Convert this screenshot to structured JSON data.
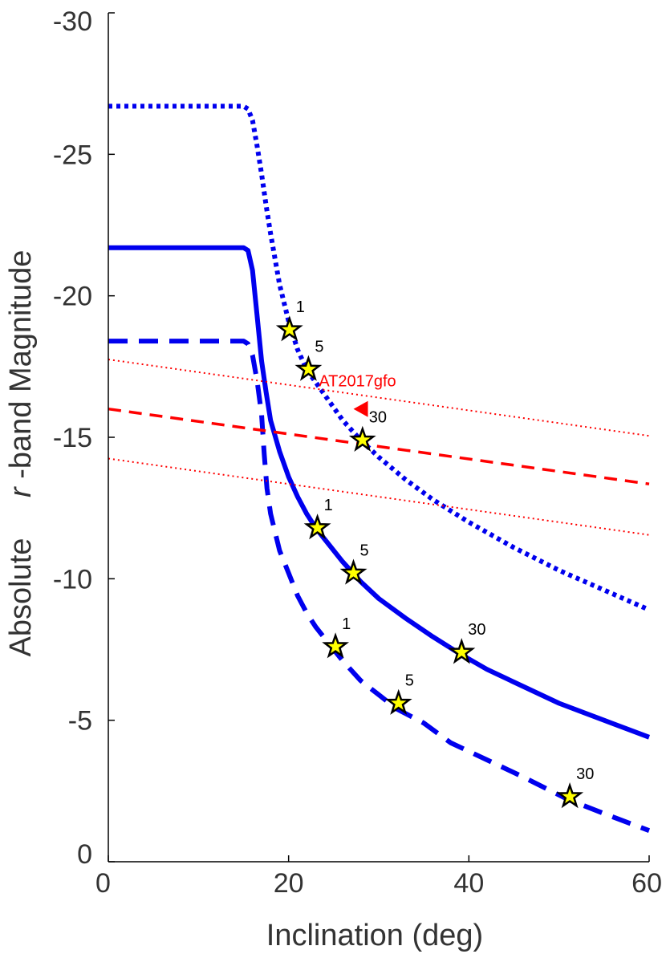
{
  "chart_data": {
    "type": "line",
    "xlabel": "Inclination (deg)",
    "ylabel_parts": [
      "Absolute",
      "r",
      "-band Magnitude"
    ],
    "xlim": [
      0,
      60
    ],
    "ylim": [
      0,
      -30
    ],
    "y_inverted": true,
    "x_ticks": [
      0,
      20,
      40,
      60
    ],
    "y_ticks": [
      0,
      -5,
      -10,
      -15,
      -20,
      -25,
      -30
    ],
    "x_tick_labels": [
      "0",
      "20",
      "40",
      "60"
    ],
    "y_tick_labels": [
      "0",
      "-5",
      "-10",
      "-15",
      "-20",
      "-25",
      "-30"
    ],
    "grid": false,
    "colors": {
      "model": "#0000ee",
      "ref": "#ff0000",
      "star_fill": "#ffff00",
      "star_stroke": "#000000",
      "axis": "#000000"
    },
    "series": [
      {
        "name": "model-dotted",
        "style": "dotted",
        "x": [
          0,
          15,
          15.5,
          16,
          16.5,
          17,
          17.5,
          18,
          19,
          20,
          21,
          22,
          24,
          26,
          28,
          30,
          33,
          36,
          40,
          45,
          50,
          55,
          60
        ],
        "y": [
          -26.7,
          -26.7,
          -26.6,
          -26.2,
          -25.3,
          -24.3,
          -23.2,
          -22.2,
          -20.4,
          -19.1,
          -18.1,
          -17.4,
          -16.5,
          -15.6,
          -14.9,
          -14.3,
          -13.5,
          -12.8,
          -12.0,
          -11.1,
          -10.3,
          -9.6,
          -8.9
        ]
      },
      {
        "name": "model-solid",
        "style": "solid",
        "x": [
          0,
          14,
          15,
          15.5,
          16,
          16.5,
          17,
          17.5,
          18,
          19,
          20,
          21,
          22,
          23,
          24,
          26,
          28,
          30,
          33,
          36,
          39,
          42,
          45,
          50,
          55,
          60
        ],
        "y": [
          -21.7,
          -21.7,
          -21.7,
          -21.6,
          -20.9,
          -19.3,
          -17.7,
          -16.6,
          -15.6,
          -14.5,
          -13.6,
          -12.9,
          -12.3,
          -11.8,
          -11.4,
          -10.6,
          -9.9,
          -9.3,
          -8.6,
          -7.95,
          -7.35,
          -6.8,
          -6.35,
          -5.6,
          -5.0,
          -4.4
        ]
      },
      {
        "name": "model-dashed",
        "style": "dashed",
        "x": [
          0,
          15,
          15.5,
          16,
          16.5,
          17,
          17.3,
          17.6,
          18,
          19,
          20,
          21,
          22,
          23,
          24,
          25,
          26,
          28,
          30,
          32,
          35,
          38,
          42,
          46,
          51,
          55,
          60
        ],
        "y": [
          -18.4,
          -18.4,
          -18.3,
          -17.9,
          -17.0,
          -15.8,
          -14.4,
          -13.2,
          -12.3,
          -11.0,
          -10.2,
          -9.4,
          -8.8,
          -8.3,
          -7.9,
          -7.5,
          -7.1,
          -6.4,
          -5.9,
          -5.4,
          -4.9,
          -4.2,
          -3.6,
          -3.0,
          -2.2,
          -1.7,
          -1.1
        ]
      },
      {
        "name": "AT2017gfo-upper",
        "style": "thin-dotted",
        "x": [
          0,
          60
        ],
        "y": [
          -17.75,
          -15.05
        ]
      },
      {
        "name": "AT2017gfo-mid",
        "style": "red-dashed",
        "x": [
          0,
          60
        ],
        "y": [
          -16.0,
          -13.35
        ]
      },
      {
        "name": "AT2017gfo-lower",
        "style": "thin-dotted",
        "x": [
          0,
          60
        ],
        "y": [
          -14.25,
          -11.55
        ]
      }
    ],
    "stars": [
      {
        "x": 20.1,
        "y": -18.8,
        "label": "1"
      },
      {
        "x": 22.2,
        "y": -17.4,
        "label": "5"
      },
      {
        "x": 28.2,
        "y": -14.9,
        "label": "30"
      },
      {
        "x": 23.2,
        "y": -11.8,
        "label": "1"
      },
      {
        "x": 27.2,
        "y": -10.2,
        "label": "5"
      },
      {
        "x": 39.2,
        "y": -7.4,
        "label": "30"
      },
      {
        "x": 25.2,
        "y": -7.6,
        "label": "1"
      },
      {
        "x": 32.2,
        "y": -5.6,
        "label": "5"
      },
      {
        "x": 51.2,
        "y": -2.3,
        "label": "30"
      }
    ],
    "annotation": {
      "text": "AT2017gfo",
      "x": 28,
      "y": -16.0
    }
  }
}
